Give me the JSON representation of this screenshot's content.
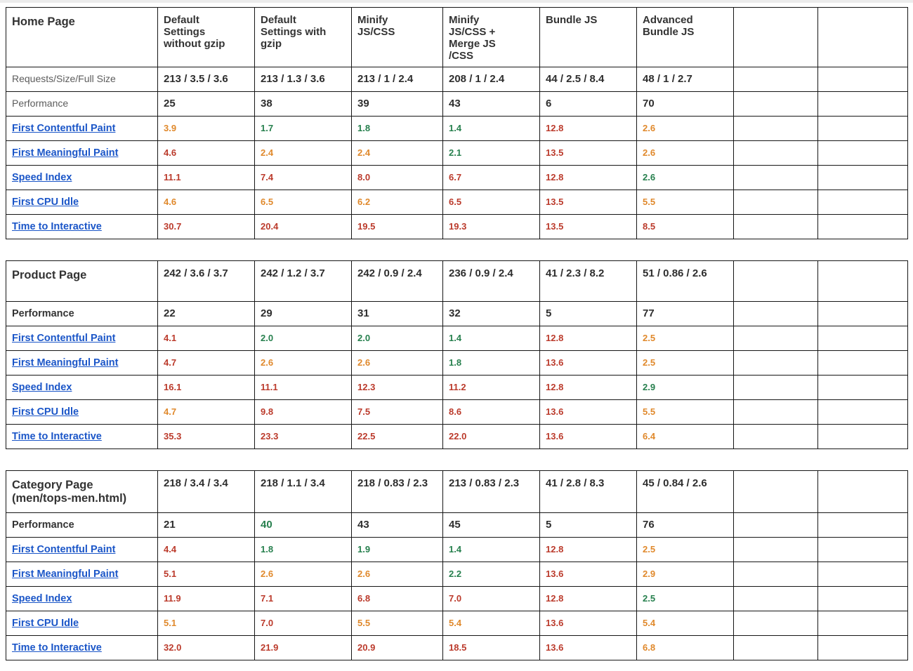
{
  "colors": {
    "red": "#bb3a2b",
    "orange": "#e0892c",
    "green": "#27804e",
    "link_blue": "#1b56c8",
    "dark_text": "#2e2e2e",
    "gray_label": "#5c5c5c",
    "header_text": "#333333",
    "border": "#161616",
    "top_strip": "#ececec"
  },
  "columns": {
    "headers": [
      "Default\nSettings\nwithout  gzip",
      "Default\nSettings with\ngzip",
      "Minify\nJS/CSS",
      "Minify\nJS/CSS +\nMerge JS\n/CSS",
      "Bundle JS",
      "Advanced\nBundle JS"
    ]
  },
  "sections": [
    {
      "id": "home",
      "title": "Home Page",
      "header_values": null,
      "rows": [
        {
          "label": "Requests/Size/Full Size",
          "link": false,
          "bold": false,
          "values": [
            {
              "v": "213 / 3.5 / 3.6",
              "c": "dark"
            },
            {
              "v": "213 / 1.3 / 3.6",
              "c": "dark"
            },
            {
              "v": "213 / 1 / 2.4",
              "c": "dark"
            },
            {
              "v": "208 / 1 / 2.4",
              "c": "dark"
            },
            {
              "v": "44 / 2.5 / 8.4",
              "c": "dark"
            },
            {
              "v": "48 / 1 / 2.7",
              "c": "dark"
            }
          ]
        },
        {
          "label": "Performance",
          "link": false,
          "bold": false,
          "values": [
            {
              "v": "25",
              "c": "dark"
            },
            {
              "v": "38",
              "c": "dark"
            },
            {
              "v": "39",
              "c": "dark"
            },
            {
              "v": "43",
              "c": "dark"
            },
            {
              "v": "6",
              "c": "dark"
            },
            {
              "v": "70",
              "c": "dark"
            }
          ]
        },
        {
          "label": "First Contentful Paint",
          "link": true,
          "values": [
            {
              "v": "3.9",
              "c": "orange"
            },
            {
              "v": "1.7",
              "c": "green"
            },
            {
              "v": "1.8",
              "c": "green"
            },
            {
              "v": "1.4",
              "c": "green"
            },
            {
              "v": "12.8",
              "c": "red"
            },
            {
              "v": "2.6",
              "c": "orange"
            }
          ]
        },
        {
          "label": "First Meaningful Paint",
          "link": true,
          "values": [
            {
              "v": "4.6",
              "c": "red"
            },
            {
              "v": "2.4",
              "c": "orange"
            },
            {
              "v": "2.4",
              "c": "orange"
            },
            {
              "v": "2.1",
              "c": "green"
            },
            {
              "v": "13.5",
              "c": "red"
            },
            {
              "v": "2.6",
              "c": "orange"
            }
          ]
        },
        {
          "label": "Speed Index",
          "link": true,
          "values": [
            {
              "v": "11.1",
              "c": "red"
            },
            {
              "v": "7.4",
              "c": "red"
            },
            {
              "v": "8.0",
              "c": "red"
            },
            {
              "v": "6.7",
              "c": "red"
            },
            {
              "v": "12.8",
              "c": "red"
            },
            {
              "v": "2.6",
              "c": "green"
            }
          ]
        },
        {
          "label": "First CPU Idle",
          "link": true,
          "values": [
            {
              "v": "4.6",
              "c": "orange"
            },
            {
              "v": "6.5",
              "c": "orange"
            },
            {
              "v": "6.2",
              "c": "orange"
            },
            {
              "v": "6.5",
              "c": "red"
            },
            {
              "v": "13.5",
              "c": "red"
            },
            {
              "v": "5.5",
              "c": "orange"
            }
          ]
        },
        {
          "label": "Time to Interactive",
          "link": true,
          "values": [
            {
              "v": "30.7",
              "c": "red"
            },
            {
              "v": "20.4",
              "c": "red"
            },
            {
              "v": "19.5",
              "c": "red"
            },
            {
              "v": "19.3",
              "c": "red"
            },
            {
              "v": "13.5",
              "c": "red"
            },
            {
              "v": "8.5",
              "c": "red"
            }
          ]
        }
      ]
    },
    {
      "id": "product",
      "title": "Product Page",
      "header_values": [
        "242 / 3.6 / 3.7",
        "242 / 1.2 / 3.7",
        "242 / 0.9 / 2.4",
        "236 / 0.9 / 2.4",
        "41 / 2.3 / 8.2",
        "51 / 0.86 / 2.6"
      ],
      "rows": [
        {
          "label": "Performance",
          "link": false,
          "bold": true,
          "values": [
            {
              "v": "22",
              "c": "dark"
            },
            {
              "v": "29",
              "c": "dark"
            },
            {
              "v": "31",
              "c": "dark"
            },
            {
              "v": "32",
              "c": "dark"
            },
            {
              "v": "5",
              "c": "dark"
            },
            {
              "v": "77",
              "c": "dark"
            }
          ]
        },
        {
          "label": "First Contentful Paint",
          "link": true,
          "values": [
            {
              "v": "4.1",
              "c": "red"
            },
            {
              "v": "2.0",
              "c": "green"
            },
            {
              "v": "2.0",
              "c": "green"
            },
            {
              "v": "1.4",
              "c": "green"
            },
            {
              "v": "12.8",
              "c": "red"
            },
            {
              "v": "2.5",
              "c": "orange"
            }
          ]
        },
        {
          "label": "First Meaningful Paint",
          "link": true,
          "values": [
            {
              "v": "4.7",
              "c": "red"
            },
            {
              "v": "2.6",
              "c": "orange"
            },
            {
              "v": "2.6",
              "c": "orange"
            },
            {
              "v": "1.8",
              "c": "green"
            },
            {
              "v": "13.6",
              "c": "red"
            },
            {
              "v": "2.5",
              "c": "orange"
            }
          ]
        },
        {
          "label": "Speed Index",
          "link": true,
          "values": [
            {
              "v": "16.1",
              "c": "red"
            },
            {
              "v": "11.1",
              "c": "red"
            },
            {
              "v": "12.3",
              "c": "red"
            },
            {
              "v": "11.2",
              "c": "red"
            },
            {
              "v": "12.8",
              "c": "red"
            },
            {
              "v": "2.9",
              "c": "green"
            }
          ]
        },
        {
          "label": "First CPU Idle",
          "link": true,
          "values": [
            {
              "v": "4.7",
              "c": "orange"
            },
            {
              "v": "9.8",
              "c": "red"
            },
            {
              "v": "7.5",
              "c": "red"
            },
            {
              "v": "8.6",
              "c": "red"
            },
            {
              "v": "13.6",
              "c": "red"
            },
            {
              "v": "5.5",
              "c": "orange"
            }
          ]
        },
        {
          "label": "Time to Interactive",
          "link": true,
          "values": [
            {
              "v": "35.3",
              "c": "red"
            },
            {
              "v": "23.3",
              "c": "red"
            },
            {
              "v": "22.5",
              "c": "red"
            },
            {
              "v": "22.0",
              "c": "red"
            },
            {
              "v": "13.6",
              "c": "red"
            },
            {
              "v": "6.4",
              "c": "orange"
            }
          ]
        }
      ]
    },
    {
      "id": "category",
      "title": "Category Page\n(men/tops-men.html)",
      "header_values": [
        "218 / 3.4 / 3.4",
        "218 / 1.1 / 3.4",
        "218 / 0.83 / 2.3",
        "213 / 0.83 / 2.3",
        "41 / 2.8 / 8.3",
        "45 / 0.84 / 2.6"
      ],
      "rows": [
        {
          "label": "Performance",
          "link": false,
          "bold": true,
          "values": [
            {
              "v": "21",
              "c": "dark"
            },
            {
              "v": "40",
              "c": "green"
            },
            {
              "v": "43",
              "c": "dark"
            },
            {
              "v": "45",
              "c": "dark"
            },
            {
              "v": "5",
              "c": "dark"
            },
            {
              "v": "76",
              "c": "dark"
            }
          ]
        },
        {
          "label": "First Contentful Paint",
          "link": true,
          "values": [
            {
              "v": "4.4",
              "c": "red"
            },
            {
              "v": "1.8",
              "c": "green"
            },
            {
              "v": "1.9",
              "c": "green"
            },
            {
              "v": "1.4",
              "c": "green"
            },
            {
              "v": "12.8",
              "c": "red"
            },
            {
              "v": "2.5",
              "c": "orange"
            }
          ]
        },
        {
          "label": "First Meaningful Paint",
          "link": true,
          "values": [
            {
              "v": "5.1",
              "c": "red"
            },
            {
              "v": "2.6",
              "c": "orange"
            },
            {
              "v": "2.6",
              "c": "orange"
            },
            {
              "v": "2.2",
              "c": "green"
            },
            {
              "v": "13.6",
              "c": "red"
            },
            {
              "v": "2.9",
              "c": "orange"
            }
          ]
        },
        {
          "label": "Speed Index",
          "link": true,
          "values": [
            {
              "v": "11.9",
              "c": "red"
            },
            {
              "v": "7.1",
              "c": "red"
            },
            {
              "v": "6.8",
              "c": "red"
            },
            {
              "v": "7.0",
              "c": "red"
            },
            {
              "v": "12.8",
              "c": "red"
            },
            {
              "v": "2.5",
              "c": "green"
            }
          ]
        },
        {
          "label": "First CPU Idle",
          "link": true,
          "values": [
            {
              "v": "5.1",
              "c": "orange"
            },
            {
              "v": "7.0",
              "c": "red"
            },
            {
              "v": "5.5",
              "c": "orange"
            },
            {
              "v": "5.4",
              "c": "orange"
            },
            {
              "v": "13.6",
              "c": "red"
            },
            {
              "v": "5.4",
              "c": "orange"
            }
          ]
        },
        {
          "label": "Time to Interactive",
          "link": true,
          "values": [
            {
              "v": "32.0",
              "c": "red"
            },
            {
              "v": "21.9",
              "c": "red"
            },
            {
              "v": "20.9",
              "c": "red"
            },
            {
              "v": "18.5",
              "c": "red"
            },
            {
              "v": "13.6",
              "c": "red"
            },
            {
              "v": "6.8",
              "c": "orange"
            }
          ]
        }
      ]
    }
  ]
}
